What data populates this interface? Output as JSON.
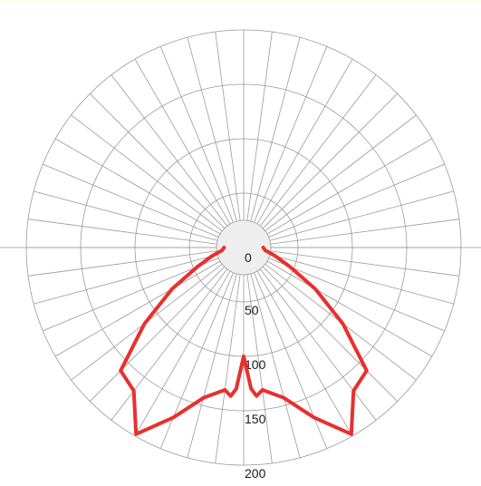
{
  "chart_data": {
    "type": "line",
    "subtype": "polar",
    "rlim": [
      0,
      200
    ],
    "r_ticks": [
      "0",
      "50",
      "100",
      "150",
      "200"
    ],
    "angle_zero": "bottom",
    "angle_step_deg": 7.5,
    "grid": true,
    "legend": "none",
    "colors": {
      "curve": "#e8302d",
      "grid": "#9a9a9a",
      "center_disc": "#eeeeee",
      "top_border": "#fdfbe0"
    },
    "series": [
      {
        "points": [
          {
            "angle": -90,
            "r": 18
          },
          {
            "angle": -82.5,
            "r": 20
          },
          {
            "angle": -75,
            "r": 30
          },
          {
            "angle": -67.5,
            "r": 46
          },
          {
            "angle": -60,
            "r": 76
          },
          {
            "angle": -52.5,
            "r": 115
          },
          {
            "angle": -45,
            "r": 160
          },
          {
            "angle": -37.5,
            "r": 166
          },
          {
            "angle": -30,
            "r": 198
          },
          {
            "angle": -22.5,
            "r": 169
          },
          {
            "angle": -15,
            "r": 143
          },
          {
            "angle": -7.5,
            "r": 132
          },
          {
            "angle": -5,
            "r": 137
          },
          {
            "angle": -3,
            "r": 130
          },
          {
            "angle": 0,
            "r": 100
          },
          {
            "angle": 3,
            "r": 130
          },
          {
            "angle": 5,
            "r": 137
          },
          {
            "angle": 7.5,
            "r": 132
          },
          {
            "angle": 15,
            "r": 143
          },
          {
            "angle": 22.5,
            "r": 169
          },
          {
            "angle": 30,
            "r": 198
          },
          {
            "angle": 37.5,
            "r": 166
          },
          {
            "angle": 45,
            "r": 160
          },
          {
            "angle": 52.5,
            "r": 115
          },
          {
            "angle": 60,
            "r": 76
          },
          {
            "angle": 67.5,
            "r": 46
          },
          {
            "angle": 75,
            "r": 30
          },
          {
            "angle": 82.5,
            "r": 20
          },
          {
            "angle": 90,
            "r": 18
          }
        ]
      }
    ]
  }
}
